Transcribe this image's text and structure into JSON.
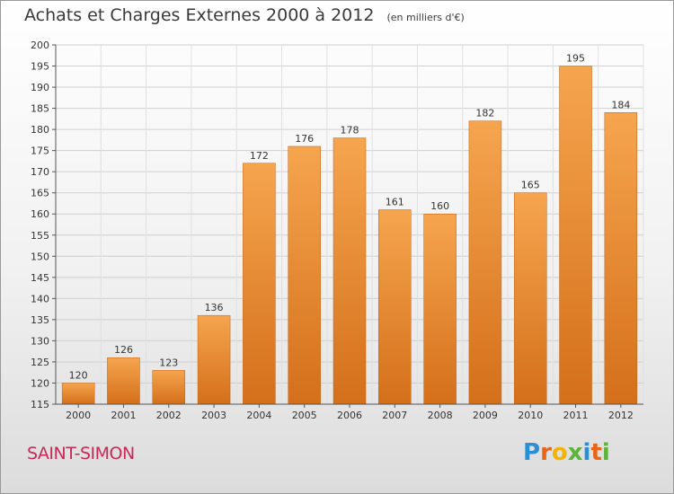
{
  "header": {
    "title": "Achats et Charges Externes 2000 à 2012",
    "unit": "(en milliers d'€)"
  },
  "footer": {
    "place": "SAINT-SIMON",
    "logo_text": "Proxiti"
  },
  "colors": {
    "bar_top": "#f6a54f",
    "bar_bottom": "#d46f1a",
    "place": "#c8285a"
  },
  "chart_data": {
    "type": "bar",
    "title": "Achats et Charges Externes 2000 à 2012",
    "subtitle": "(en milliers d'€)",
    "xlabel": "",
    "ylabel": "",
    "categories": [
      "2000",
      "2001",
      "2002",
      "2003",
      "2004",
      "2005",
      "2006",
      "2007",
      "2008",
      "2009",
      "2010",
      "2011",
      "2012"
    ],
    "values": [
      120,
      126,
      123,
      136,
      172,
      176,
      178,
      161,
      160,
      182,
      165,
      195,
      184
    ],
    "ylim": [
      115,
      200
    ],
    "yticks": [
      115,
      120,
      125,
      130,
      135,
      140,
      145,
      150,
      155,
      160,
      165,
      170,
      175,
      180,
      185,
      190,
      195,
      200
    ],
    "grid": true,
    "data_labels": true,
    "legend": "none"
  }
}
